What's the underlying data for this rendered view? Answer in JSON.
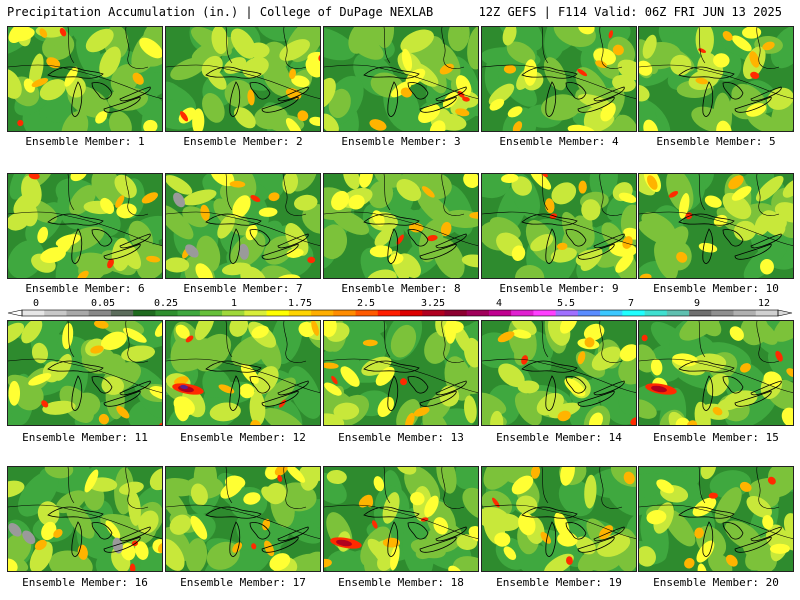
{
  "header": {
    "left": "Precipitation Accumulation (in.) | College of DuPage NEXLAB",
    "right": "12Z GEFS | F114 Valid: 06Z FRI JUN 13 2025"
  },
  "label_prefix": "Ensemble Member: ",
  "members": [
    {
      "label": "Ensemble Member: 1"
    },
    {
      "label": "Ensemble Member: 2"
    },
    {
      "label": "Ensemble Member: 3"
    },
    {
      "label": "Ensemble Member: 4"
    },
    {
      "label": "Ensemble Member: 5"
    },
    {
      "label": "Ensemble Member: 6"
    },
    {
      "label": "Ensemble Member: 7"
    },
    {
      "label": "Ensemble Member: 8"
    },
    {
      "label": "Ensemble Member: 9"
    },
    {
      "label": "Ensemble Member: 10"
    },
    {
      "label": "Ensemble Member: 11"
    },
    {
      "label": "Ensemble Member: 12"
    },
    {
      "label": "Ensemble Member: 13"
    },
    {
      "label": "Ensemble Member: 14"
    },
    {
      "label": "Ensemble Member: 15"
    },
    {
      "label": "Ensemble Member: 16"
    },
    {
      "label": "Ensemble Member: 17"
    },
    {
      "label": "Ensemble Member: 18"
    },
    {
      "label": "Ensemble Member: 19"
    },
    {
      "label": "Ensemble Member: 20"
    }
  ],
  "colorbar": {
    "tick_labels": [
      "0",
      "0.05",
      "0.25",
      "1",
      "1.75",
      "2.5",
      "3.25",
      "4",
      "5.5",
      "7",
      "9",
      "12"
    ],
    "colors": [
      "#e6e6e6",
      "#c8c8c8",
      "#a8a8a8",
      "#888888",
      "#5c6d5c",
      "#1f6b1f",
      "#2f8f2f",
      "#3fa83f",
      "#66c03a",
      "#9fd83a",
      "#d8ee3a",
      "#ffff00",
      "#ffd400",
      "#ffae00",
      "#ff8c00",
      "#ff5a00",
      "#ff1e00",
      "#dd0000",
      "#b00020",
      "#8c0030",
      "#a0005a",
      "#c00090",
      "#e020d0",
      "#ff40ff",
      "#a070ff",
      "#5a8cff",
      "#3cc8ff",
      "#20ffff",
      "#40e0d0",
      "#60c0b0",
      "#707070",
      "#909090",
      "#b0b0b0",
      "#d0d0d0"
    ]
  },
  "map_colors": {
    "dark_green": "#2e8b2e",
    "mid_green": "#3fa83f",
    "light_green": "#7cc23a",
    "yellow_green": "#c8e83a",
    "yellow": "#ffff33",
    "orange": "#ffb400",
    "red": "#ff2a00",
    "dark_red": "#b0001e",
    "purple": "#5a2090",
    "gray": "#9a9a9a"
  }
}
